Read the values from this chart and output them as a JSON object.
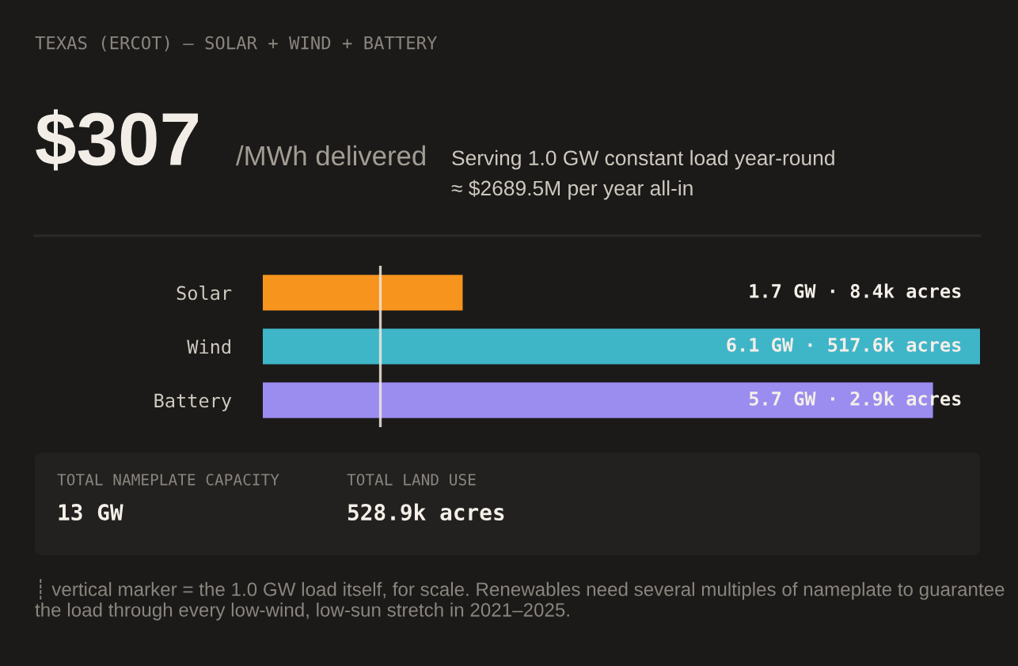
{
  "chart_data": {
    "type": "bar",
    "orientation": "horizontal",
    "title": "TEXAS (ERCOT) — SOLAR + WIND + BATTERY",
    "categories": [
      "Solar",
      "Wind",
      "Battery"
    ],
    "values": [
      1.7,
      6.1,
      5.7
    ],
    "colors": [
      "#f7941d",
      "#3fb5c8",
      "#9b8cef"
    ],
    "value_labels": [
      "1.7 GW · 8.4k acres",
      "6.1 GW · 517.6k acres",
      "5.7 GW · 2.9k acres"
    ],
    "xlim": [
      0,
      6.1
    ],
    "tick_labels": "y",
    "grid": false,
    "legend": false,
    "ref_lines": [
      {
        "axis": "x",
        "value": 1.0,
        "color": "#f0e8dc"
      }
    ],
    "annotations": [
      "$307",
      "/MWh delivered",
      "Serving 1.0 GW constant load year-round",
      "≈ $2689.5M per year all-in",
      "TOTAL NAMEPLATE CAPACITY",
      "13 GW",
      "TOTAL LAND USE",
      "528.9k acres",
      "┊ vertical marker = the 1.0 GW load itself, for scale. Renewables need several multiples of nameplate to guarantee the load through every low-wind, low-sun stretch in 2021–2025."
    ]
  }
}
